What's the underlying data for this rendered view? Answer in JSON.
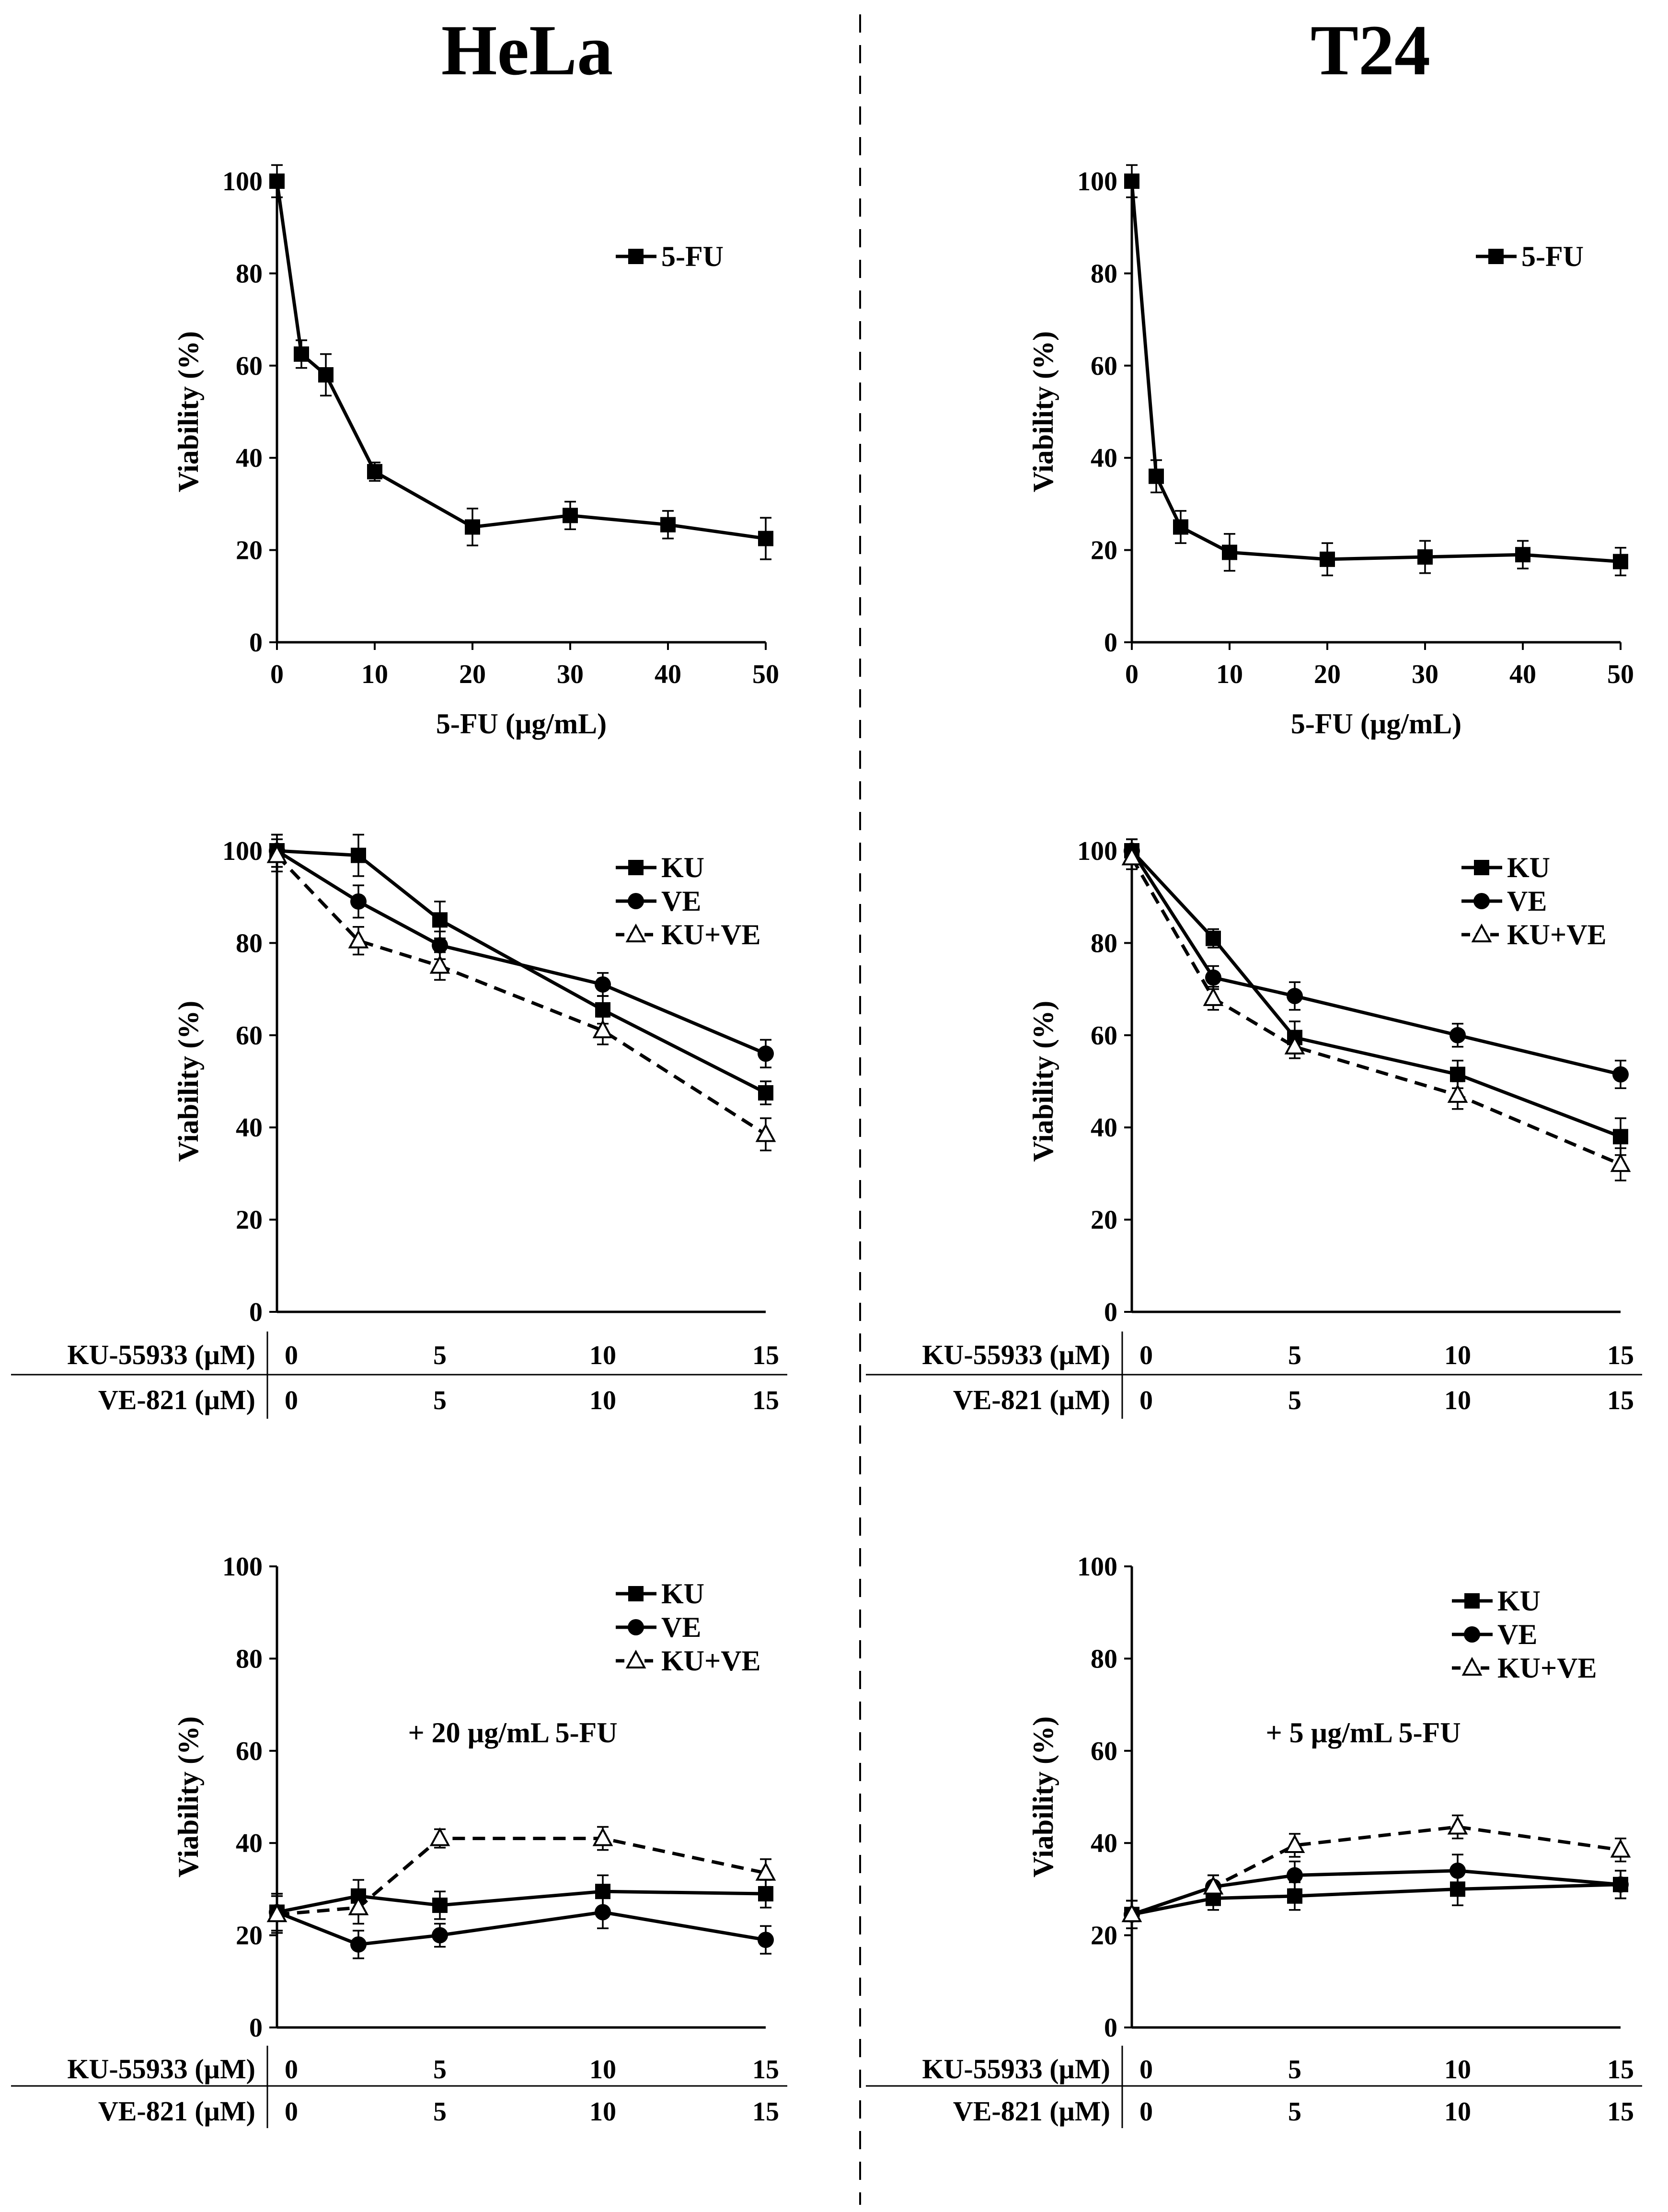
{
  "columns": [
    "HeLa",
    "T24"
  ],
  "conc_table": {
    "row_labels": [
      "KU-55933 (µM)",
      "VE-821 (µM)"
    ],
    "values": [
      "0",
      "5",
      "10",
      "15"
    ]
  },
  "chart_data": [
    {
      "id": "hela-5fu",
      "type": "line",
      "column": "HeLa",
      "title": "",
      "xlabel": "5-FU (µg/mL)",
      "ylabel": "Viability (%)",
      "xlim": [
        0,
        50
      ],
      "ylim": [
        0,
        100
      ],
      "xticks": [
        0,
        10,
        20,
        30,
        40,
        50
      ],
      "yticks": [
        0,
        20,
        40,
        60,
        80,
        100
      ],
      "series": [
        {
          "name": "5-FU",
          "marker": "square",
          "dash": false,
          "x": [
            0,
            2.5,
            5,
            10,
            20,
            30,
            40,
            50
          ],
          "y": [
            100,
            62.5,
            58,
            37,
            25,
            27.5,
            25.5,
            22.5
          ],
          "err": [
            3.5,
            3,
            4.5,
            2,
            4,
            3,
            3,
            4.5
          ]
        }
      ]
    },
    {
      "id": "t24-5fu",
      "type": "line",
      "column": "T24",
      "title": "",
      "xlabel": "5-FU (µg/mL)",
      "ylabel": "Viability (%)",
      "xlim": [
        0,
        50
      ],
      "ylim": [
        0,
        100
      ],
      "xticks": [
        0,
        10,
        20,
        30,
        40,
        50
      ],
      "yticks": [
        0,
        20,
        40,
        60,
        80,
        100
      ],
      "series": [
        {
          "name": "5-FU",
          "marker": "square",
          "dash": false,
          "x": [
            0,
            2.5,
            5,
            10,
            20,
            30,
            40,
            50
          ],
          "y": [
            100,
            36,
            25,
            19.5,
            18,
            18.5,
            19,
            17.5
          ],
          "err": [
            3.5,
            3.5,
            3.5,
            4,
            3.5,
            3.5,
            3,
            3
          ]
        }
      ]
    },
    {
      "id": "hela-ku-ve",
      "type": "line",
      "column": "HeLa",
      "title": "",
      "xlabel": "",
      "ylabel": "Viability (%)",
      "xlim": [
        0,
        15
      ],
      "ylim": [
        0,
        100
      ],
      "yticks": [
        0,
        20,
        40,
        60,
        80,
        100
      ],
      "series": [
        {
          "name": "KU",
          "marker": "square",
          "dash": false,
          "x": [
            0,
            2.5,
            5,
            10,
            15
          ],
          "y": [
            100,
            99,
            85,
            65.5,
            47.5
          ],
          "err": [
            3.5,
            4.5,
            4,
            3,
            2.5
          ]
        },
        {
          "name": "VE",
          "marker": "circle",
          "dash": false,
          "x": [
            0,
            2.5,
            5,
            10,
            15
          ],
          "y": [
            100,
            89,
            79.5,
            71,
            56
          ],
          "err": [
            3.5,
            3.5,
            3,
            2.5,
            3
          ]
        },
        {
          "name": "KU+VE",
          "marker": "triangle",
          "dash": true,
          "x": [
            0,
            2.5,
            5,
            10,
            15
          ],
          "y": [
            99,
            80.5,
            75,
            61,
            38.5
          ],
          "err": [
            3.5,
            3,
            3,
            3,
            3.5
          ]
        }
      ]
    },
    {
      "id": "t24-ku-ve",
      "type": "line",
      "column": "T24",
      "title": "",
      "xlabel": "",
      "ylabel": "Viability (%)",
      "xlim": [
        0,
        15
      ],
      "ylim": [
        0,
        100
      ],
      "yticks": [
        0,
        20,
        40,
        60,
        80,
        100
      ],
      "series": [
        {
          "name": "KU",
          "marker": "square",
          "dash": false,
          "x": [
            0,
            2.5,
            5,
            10,
            15
          ],
          "y": [
            100,
            81,
            59.5,
            51.5,
            38
          ],
          "err": [
            2.5,
            2,
            3.5,
            3,
            4
          ]
        },
        {
          "name": "VE",
          "marker": "circle",
          "dash": false,
          "x": [
            0,
            2.5,
            5,
            10,
            15
          ],
          "y": [
            100,
            72.5,
            68.5,
            60,
            51.5
          ],
          "err": [
            2.5,
            2.5,
            3,
            2.5,
            3
          ]
        },
        {
          "name": "KU+VE",
          "marker": "triangle",
          "dash": true,
          "x": [
            0,
            2.5,
            5,
            10,
            15
          ],
          "y": [
            98.5,
            68,
            57.5,
            47,
            32
          ],
          "err": [
            2.5,
            2.5,
            2.5,
            3,
            3.5
          ]
        }
      ]
    },
    {
      "id": "hela-combo",
      "type": "line",
      "column": "HeLa",
      "title": "",
      "annotation": "+ 20 µg/mL 5-FU",
      "xlabel": "",
      "ylabel": "Viability (%)",
      "xlim": [
        0,
        15
      ],
      "ylim": [
        0,
        100
      ],
      "yticks": [
        0,
        20,
        40,
        60,
        80,
        100
      ],
      "series": [
        {
          "name": "KU",
          "marker": "square",
          "dash": false,
          "x": [
            0,
            2.5,
            5,
            10,
            15
          ],
          "y": [
            25,
            28.5,
            26.5,
            29.5,
            29
          ],
          "err": [
            4,
            3.5,
            3,
            3.5,
            3
          ]
        },
        {
          "name": "VE",
          "marker": "circle",
          "dash": false,
          "x": [
            0,
            2.5,
            5,
            10,
            15
          ],
          "y": [
            25,
            18,
            20,
            25,
            19
          ],
          "err": [
            4,
            3,
            2.5,
            3.5,
            3
          ]
        },
        {
          "name": "KU+VE",
          "marker": "triangle",
          "dash": true,
          "x": [
            0,
            2.5,
            5,
            10,
            15
          ],
          "y": [
            24.5,
            26,
            41,
            41,
            33.5
          ],
          "err": [
            4,
            3.5,
            2,
            2.5,
            3
          ]
        }
      ]
    },
    {
      "id": "t24-combo",
      "type": "line",
      "column": "T24",
      "title": "",
      "annotation": "+ 5 µg/mL 5-FU",
      "xlabel": "",
      "ylabel": "Viability (%)",
      "xlim": [
        0,
        15
      ],
      "ylim": [
        0,
        100
      ],
      "yticks": [
        0,
        20,
        40,
        60,
        80,
        100
      ],
      "series": [
        {
          "name": "KU",
          "marker": "square",
          "dash": false,
          "x": [
            0,
            2.5,
            5,
            10,
            15
          ],
          "y": [
            24.5,
            28,
            28.5,
            30,
            31
          ],
          "err": [
            3,
            2.5,
            3,
            3.5,
            3
          ]
        },
        {
          "name": "VE",
          "marker": "circle",
          "dash": false,
          "x": [
            0,
            2.5,
            5,
            10,
            15
          ],
          "y": [
            24.5,
            30.5,
            33,
            34,
            31
          ],
          "err": [
            3,
            2.5,
            3,
            3.5,
            3
          ]
        },
        {
          "name": "KU+VE",
          "marker": "triangle",
          "dash": true,
          "x": [
            0,
            2.5,
            5,
            10,
            15
          ],
          "y": [
            24.5,
            30.5,
            39.5,
            43.5,
            38.5
          ],
          "err": [
            3,
            2.5,
            2.5,
            2.5,
            2.5
          ]
        }
      ]
    }
  ]
}
